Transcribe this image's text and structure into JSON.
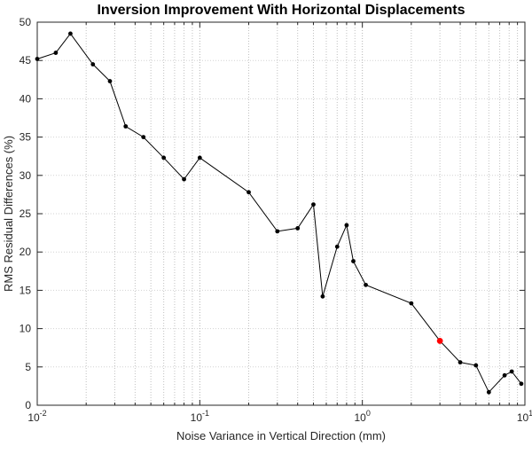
{
  "figure": {
    "background": "#ffffff"
  },
  "chart_data": {
    "type": "line",
    "title": "Inversion Improvement With Horizontal Displacements",
    "xlabel": "Noise Variance in Vertical Direction (mm)",
    "ylabel": "RMS Residual Differences (%)",
    "x_scale": "log",
    "xlim": [
      0.01,
      10
    ],
    "ylim": [
      0,
      50
    ],
    "grid": "on",
    "legend": "none",
    "y_ticks": [
      0,
      5,
      10,
      15,
      20,
      25,
      30,
      35,
      40,
      45,
      50
    ],
    "x_major_ticks": [
      0.01,
      0.1,
      1,
      10
    ],
    "x_major_tick_labels": [
      {
        "base": "10",
        "exp": "-2"
      },
      {
        "base": "10",
        "exp": "-1"
      },
      {
        "base": "10",
        "exp": "0"
      },
      {
        "base": "10",
        "exp": "1"
      }
    ],
    "line_color": "#000000",
    "marker_color": "#000000",
    "series": [
      {
        "name": "rms-residual-differences",
        "points": [
          [
            0.01,
            45.2
          ],
          [
            0.013,
            46.0
          ],
          [
            0.016,
            48.5
          ],
          [
            0.022,
            44.5
          ],
          [
            0.028,
            42.3
          ],
          [
            0.035,
            36.4
          ],
          [
            0.045,
            35.0
          ],
          [
            0.06,
            32.3
          ],
          [
            0.08,
            29.5
          ],
          [
            0.1,
            32.3
          ],
          [
            0.2,
            27.8
          ],
          [
            0.3,
            22.7
          ],
          [
            0.4,
            23.1
          ],
          [
            0.5,
            26.2
          ],
          [
            0.57,
            14.2
          ],
          [
            0.7,
            20.7
          ],
          [
            0.8,
            23.5
          ],
          [
            0.88,
            18.8
          ],
          [
            1.05,
            15.7
          ],
          [
            2.0,
            13.3
          ],
          [
            3.0,
            8.4
          ],
          [
            4.0,
            5.6
          ],
          [
            5.0,
            5.2
          ],
          [
            6.0,
            1.7
          ],
          [
            7.5,
            3.9
          ],
          [
            8.3,
            4.4
          ],
          [
            9.5,
            2.8
          ]
        ]
      }
    ],
    "highlight_point": {
      "x": 3.0,
      "y": 8.4,
      "color": "#ff0000"
    }
  }
}
